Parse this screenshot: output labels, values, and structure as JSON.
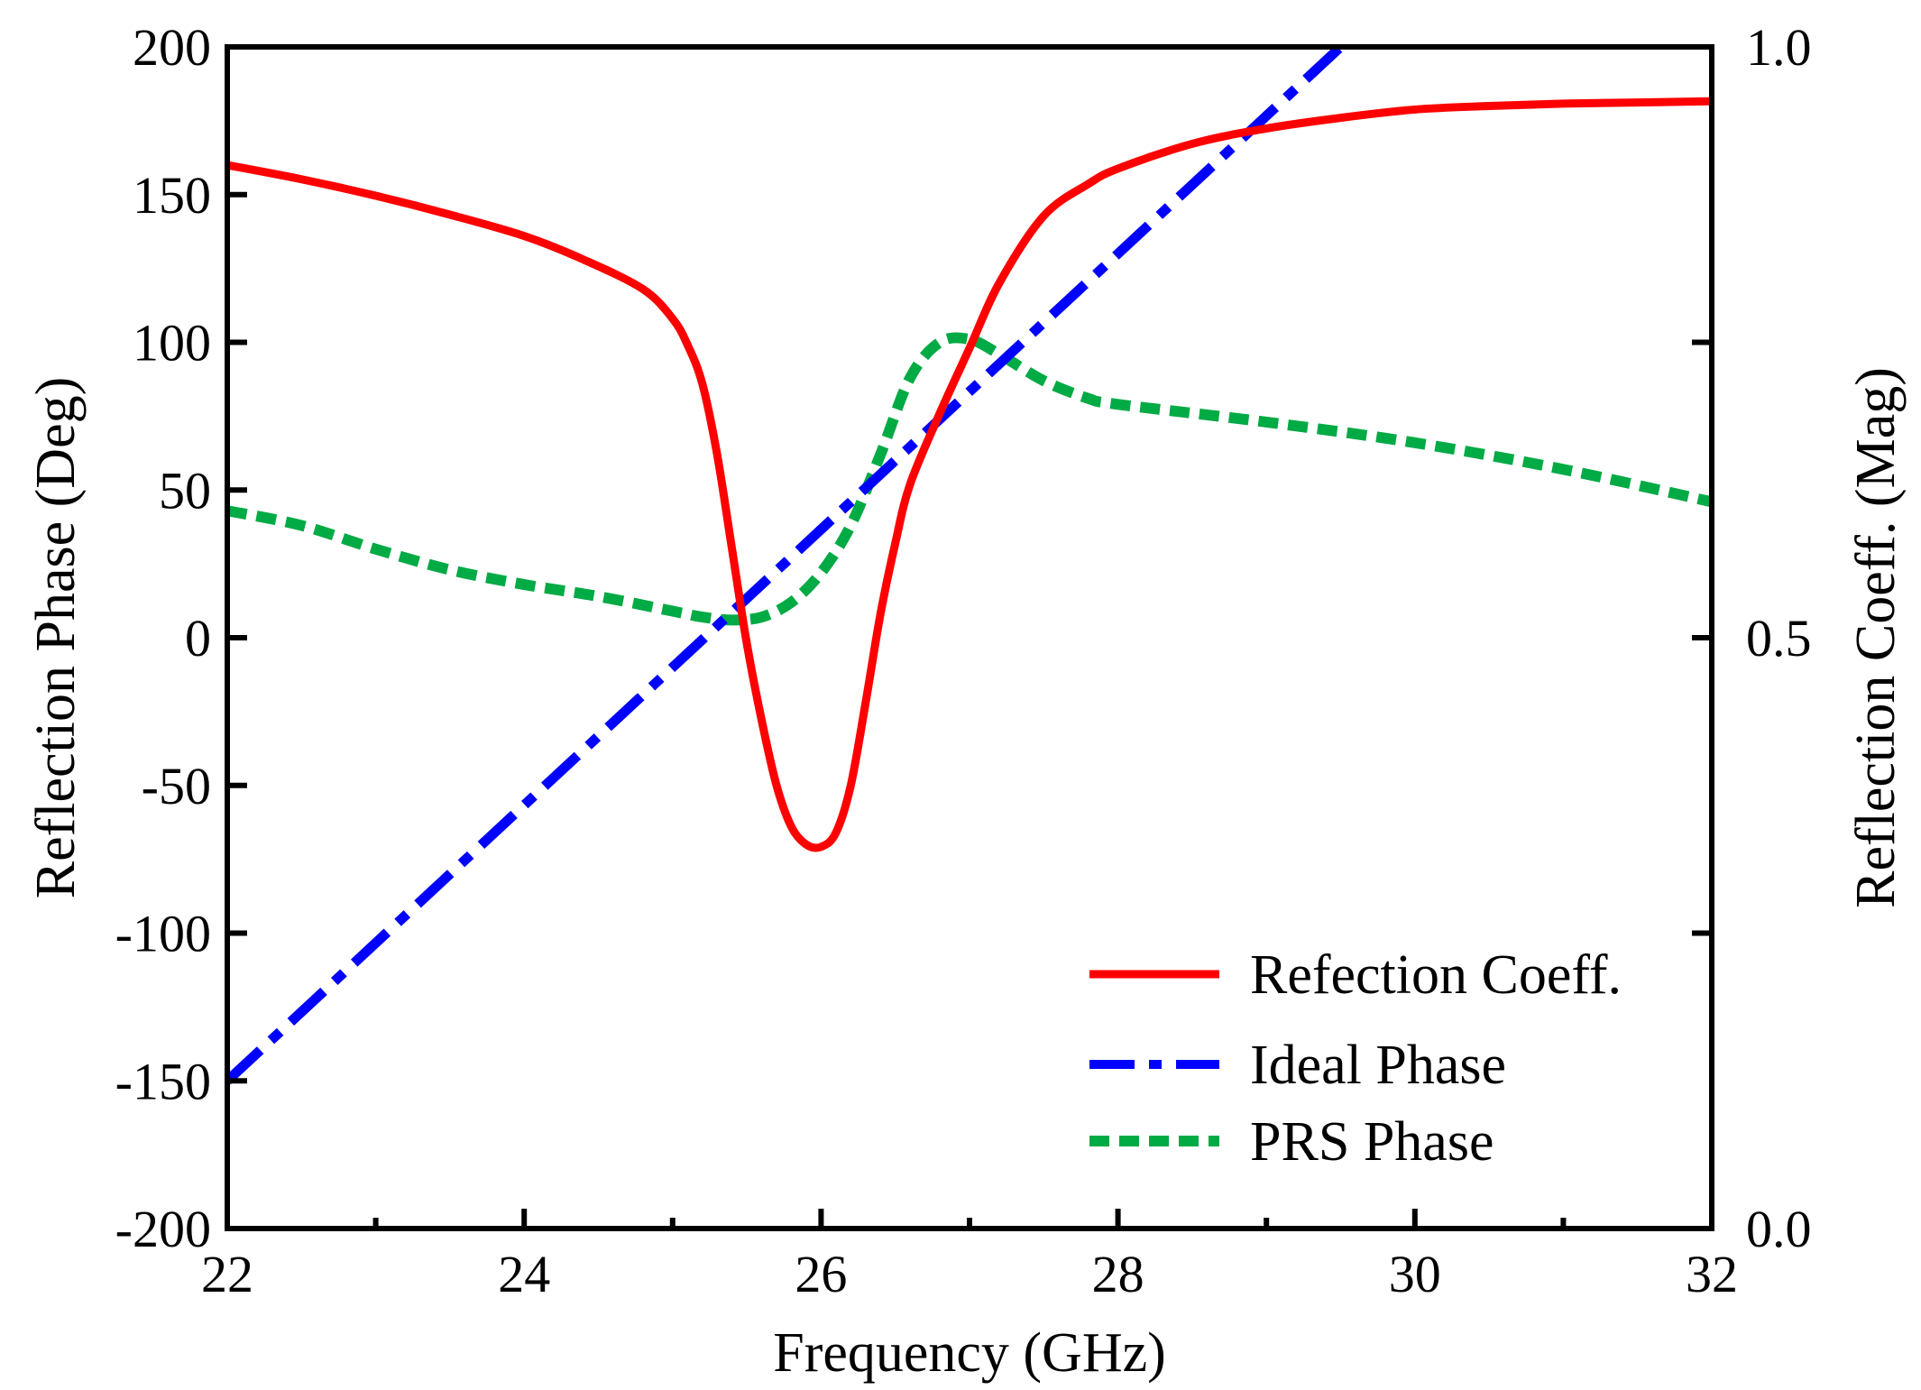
{
  "chart_data": {
    "type": "line",
    "title": "",
    "xlabel": "Frequency (GHz)",
    "ylabel_left": "Reflection Phase (Deg)",
    "ylabel_right": "Reflection Coeff. (Mag)",
    "xlim": [
      22,
      32
    ],
    "ylim_left": [
      -200,
      200
    ],
    "ylim_right": [
      0.0,
      1.0
    ],
    "x_ticks": [
      22,
      24,
      26,
      28,
      30,
      32
    ],
    "x_tick_labels": [
      "22",
      "24",
      "26",
      "28",
      "30",
      "32"
    ],
    "y_left_ticks": [
      -200,
      -150,
      -100,
      -50,
      0,
      50,
      100,
      150,
      200
    ],
    "y_left_tick_labels": [
      "-200",
      "-150",
      "-100",
      "-50",
      "0",
      "50",
      "100",
      "150",
      "200"
    ],
    "y_right_ticks": [
      0.0,
      0.5,
      1.0
    ],
    "y_right_tick_labels": [
      "0.0",
      "0.5",
      "1.0"
    ],
    "grid": false,
    "legend_position": "bottom-right",
    "series": [
      {
        "name": "Refection Coeff.",
        "axis": "right",
        "color": "#ff0000",
        "style": "solid",
        "x": [
          22,
          22.5,
          23,
          23.5,
          24,
          24.4,
          24.8,
          25.0,
          25.1,
          25.2,
          25.3,
          25.4,
          25.5,
          25.6,
          25.7,
          25.8,
          25.9,
          26.0,
          26.1,
          26.2,
          26.3,
          26.4,
          26.5,
          26.6,
          26.8,
          27.0,
          27.2,
          27.5,
          27.8,
          28.0,
          28.5,
          29.0,
          29.5,
          30.0,
          30.5,
          31.0,
          31.5,
          32.0
        ],
        "y": [
          0.9,
          0.888,
          0.874,
          0.858,
          0.84,
          0.82,
          0.795,
          0.77,
          0.748,
          0.715,
          0.655,
          0.575,
          0.495,
          0.43,
          0.375,
          0.34,
          0.325,
          0.323,
          0.335,
          0.375,
          0.445,
          0.52,
          0.58,
          0.63,
          0.69,
          0.745,
          0.8,
          0.857,
          0.884,
          0.897,
          0.918,
          0.931,
          0.94,
          0.947,
          0.95,
          0.952,
          0.953,
          0.954
        ]
      },
      {
        "name": "Ideal Phase",
        "axis": "left",
        "color": "#0000ff",
        "style": "dash-dot",
        "x": [
          22,
          29.5
        ],
        "y": [
          -150,
          200
        ]
      },
      {
        "name": "PRS Phase",
        "axis": "left",
        "color": "#00aa44",
        "style": "dashed",
        "x": [
          22,
          22.5,
          23,
          23.5,
          24,
          24.5,
          25,
          25.2,
          25.4,
          25.6,
          25.8,
          26.0,
          26.2,
          26.4,
          26.6,
          26.8,
          27.0,
          27.2,
          27.5,
          27.8,
          28.0,
          29.0,
          30.0,
          31.0,
          32.0
        ],
        "y": [
          43,
          38,
          30,
          23,
          18,
          14,
          9,
          7,
          6,
          7,
          12,
          22,
          38,
          62,
          88,
          100,
          101,
          96,
          87,
          81,
          79,
          73,
          66,
          57,
          46
        ]
      }
    ]
  }
}
